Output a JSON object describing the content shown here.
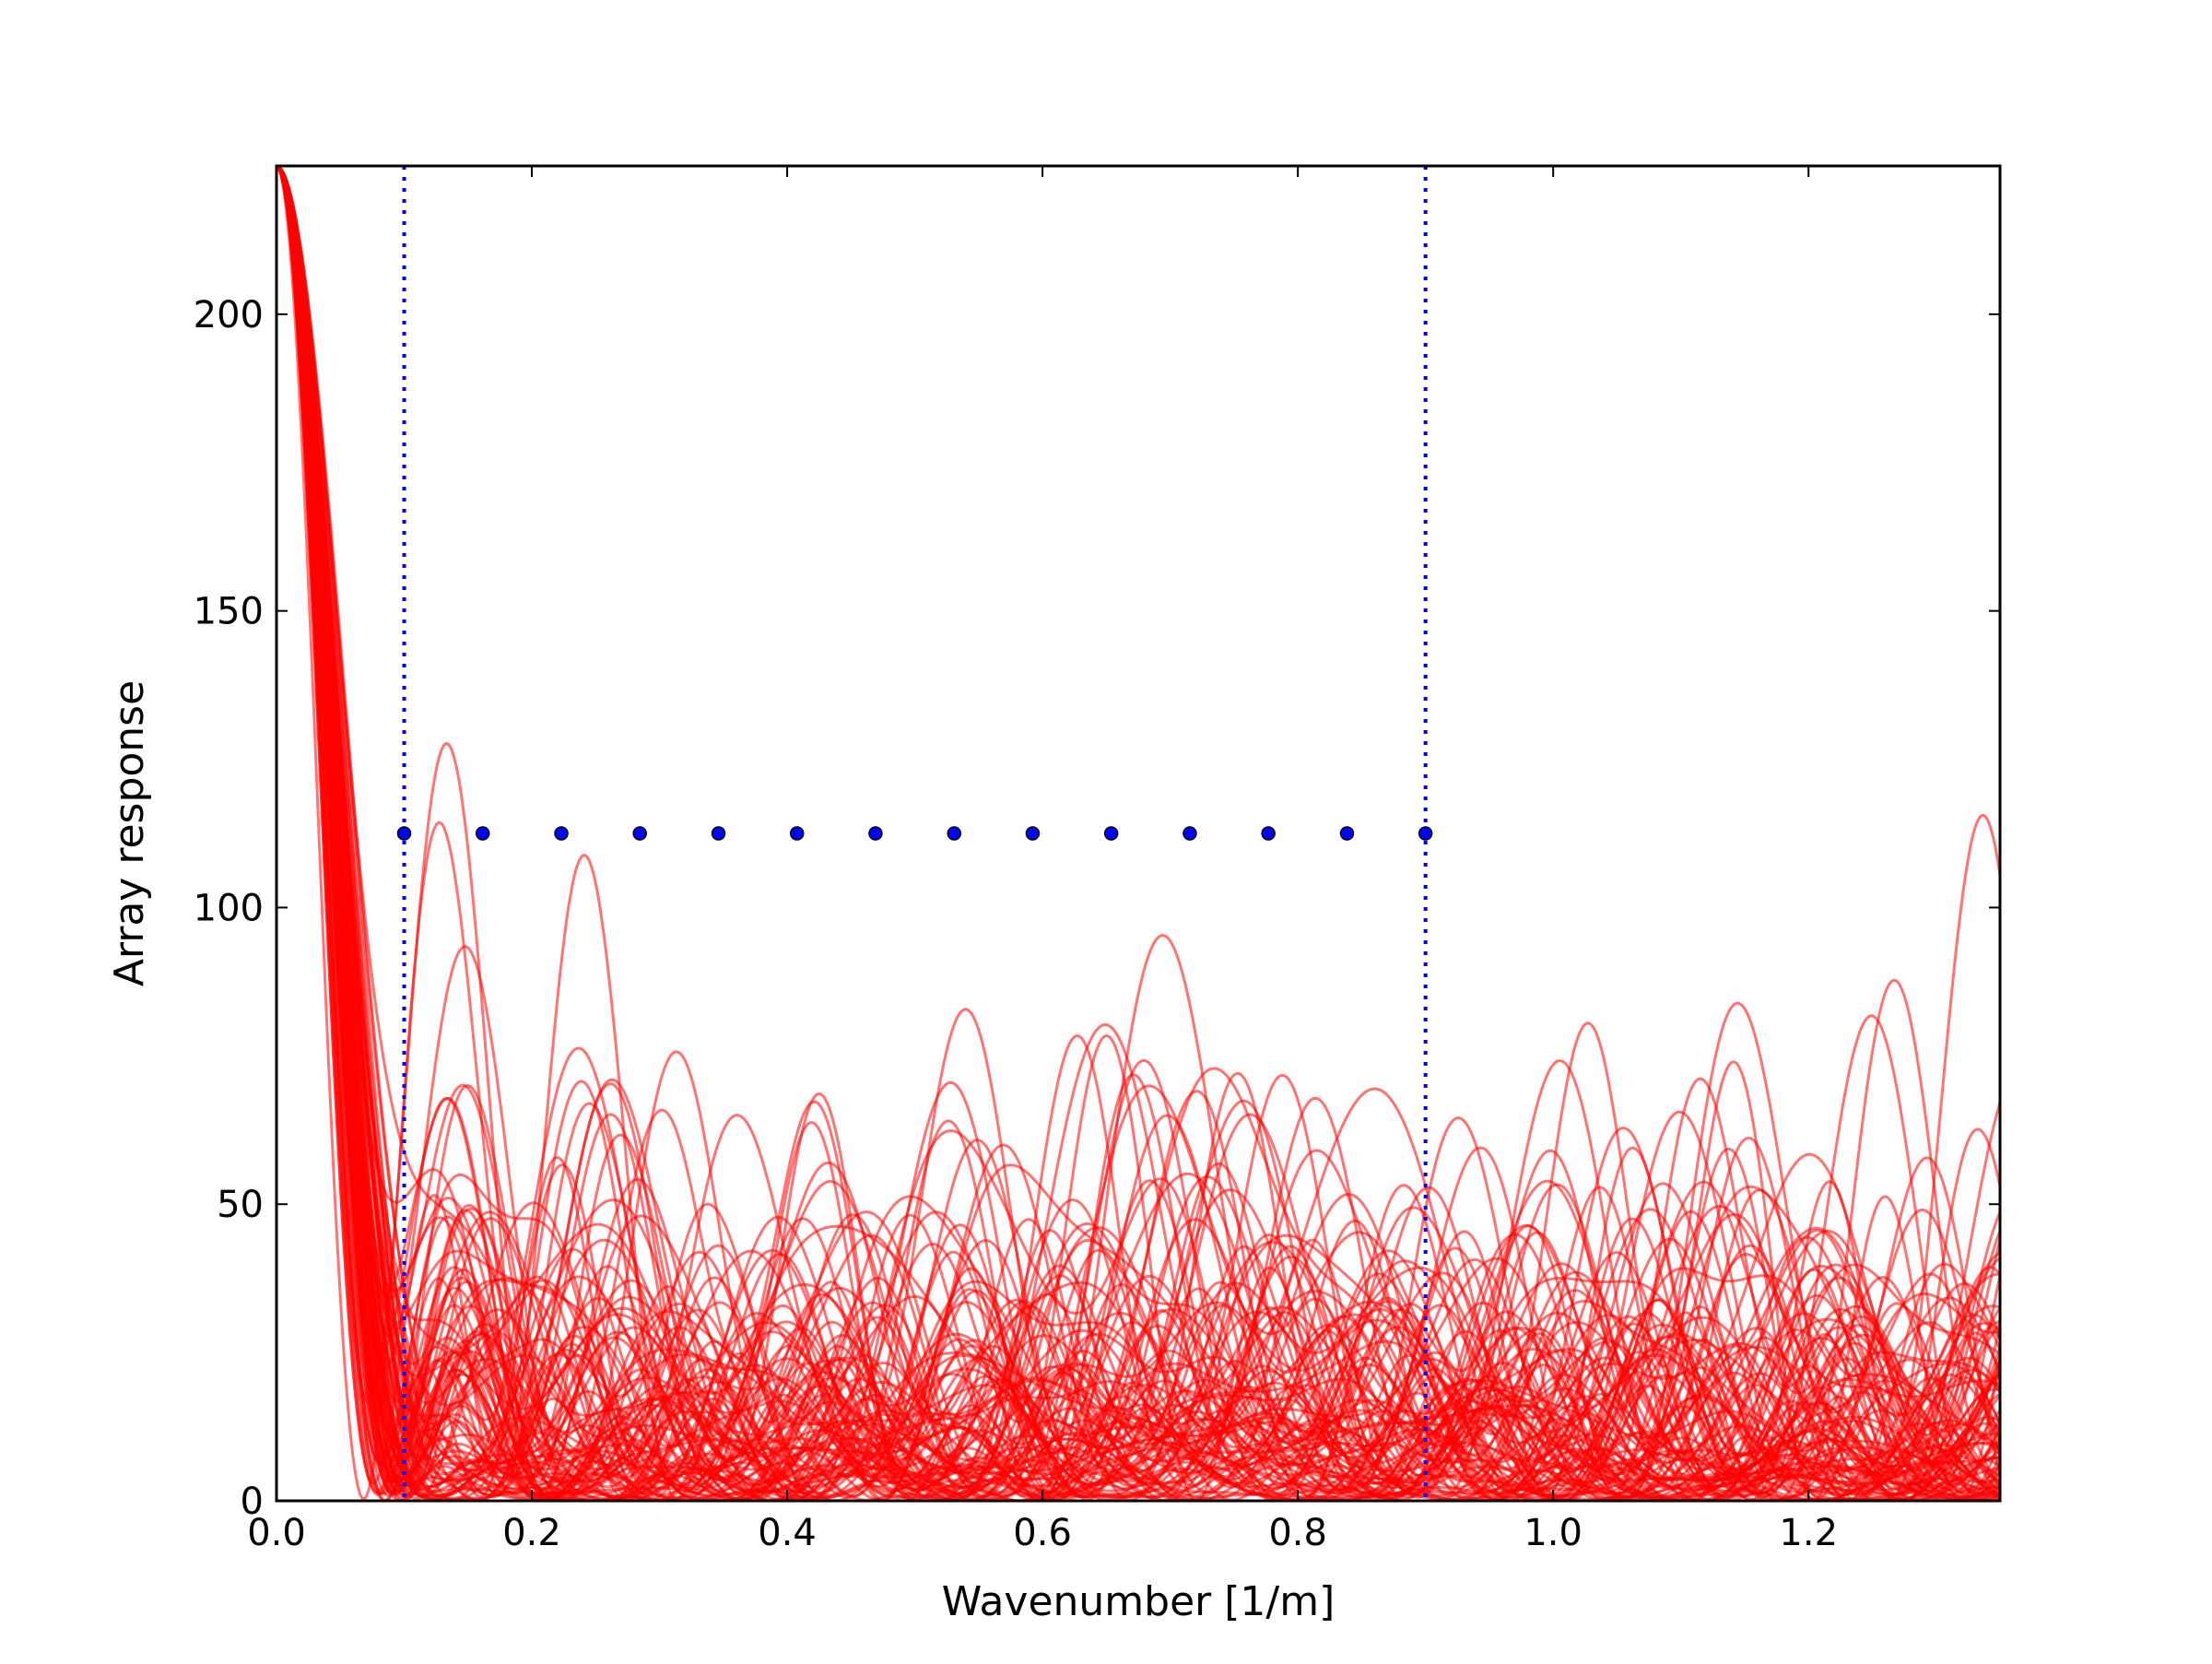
{
  "chart_data": {
    "type": "line",
    "title": "",
    "xlabel": "Wavenumber [1/m]",
    "ylabel": "Array response",
    "xlim": [
      0.0,
      1.35
    ],
    "ylim": [
      0,
      225
    ],
    "xticks": [
      "0.0",
      "0.2",
      "0.4",
      "0.6",
      "0.8",
      "1.0",
      "1.2"
    ],
    "yticks": [
      "0",
      "50",
      "100",
      "150",
      "200"
    ],
    "grid": false,
    "legend": "none",
    "colors": {
      "curves": "#ff0000",
      "limits": "#0000ff",
      "markers": "#0000ff",
      "marker_edge": "#000000",
      "axes": "#000000"
    },
    "series": [
      {
        "values_note_removed": true,
        "curve_count": 100,
        "peak_value": 225,
        "main_lobe_null_range": [
          0.1,
          0.135
        ]
      }
    ],
    "vertical_lines": [
      0.1,
      0.9
    ],
    "markers": {
      "y": 112.5,
      "x": [
        0.1,
        0.1615,
        0.2231,
        0.2846,
        0.3462,
        0.4077,
        0.4692,
        0.5308,
        0.5923,
        0.6538,
        0.7154,
        0.7769,
        0.8385,
        0.9
      ]
    }
  }
}
